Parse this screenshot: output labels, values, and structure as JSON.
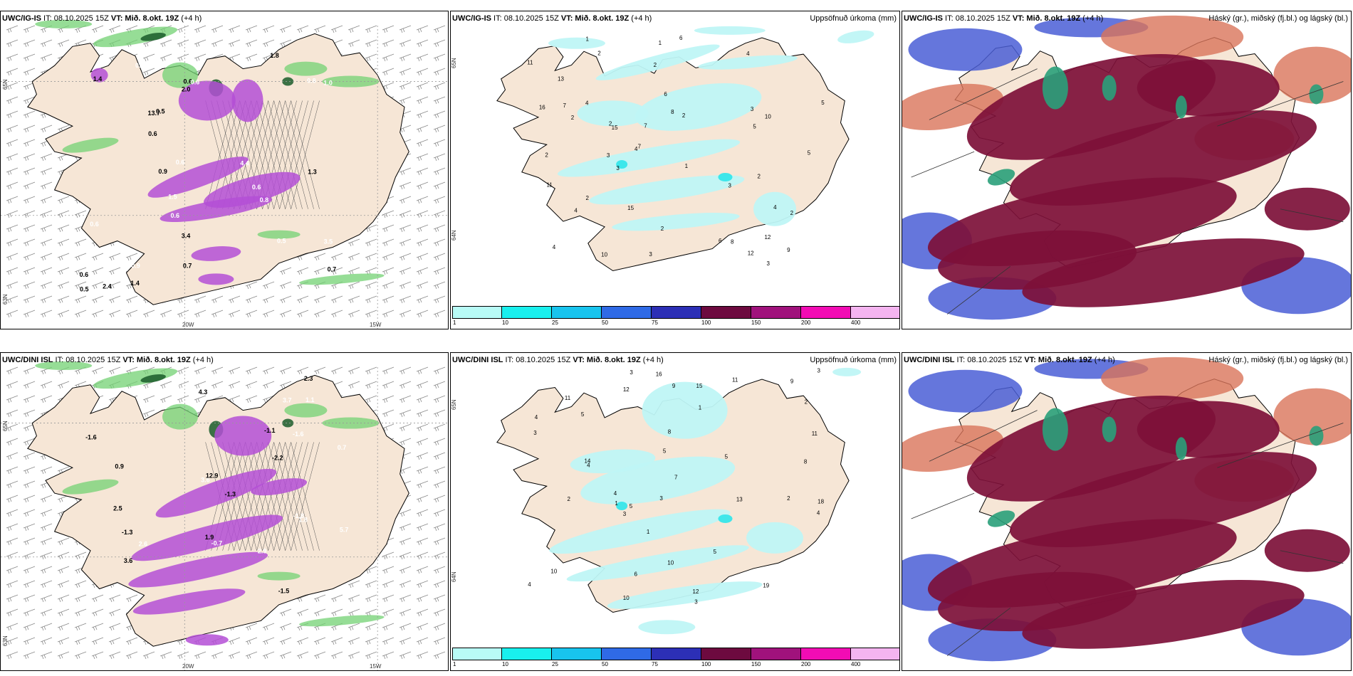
{
  "rows": [
    {
      "model": "UWC/IG-IS",
      "panels": [
        {
          "title_model": "UWC/IG-IS",
          "it_text": "IT: 08.10.2025 15Z",
          "vt_label": "VT: Mið. 8.okt. 19Z",
          "lead": "(+4 h)"
        },
        {
          "title_model": "UWC/IG-IS",
          "it_text": "IT: 08.10.2025 15Z",
          "vt_label": "VT: Mið. 8.okt. 19Z",
          "lead": "(+4 h)",
          "right_label": "Uppsöfnuð úrkoma (mm)"
        },
        {
          "title_model": "UWC/IG-IS",
          "it_text": "IT: 08.10.2025 15Z",
          "vt_label": "VT: Mið. 8.okt. 19Z",
          "lead": "(+4 h)",
          "right_label": "Háský (gr.), miðský (fj.bl.) og lágský (bl.)"
        }
      ]
    },
    {
      "model": "UWC/DINI ISL",
      "panels": [
        {
          "title_model": "UWC/DINI ISL",
          "it_text": "IT: 08.10.2025 15Z",
          "vt_label": "VT: Mið. 8.okt. 19Z",
          "lead": "(+4 h)"
        },
        {
          "title_model": "UWC/DINI ISL",
          "it_text": "IT: 08.10.2025 15Z",
          "vt_label": "VT: Mið. 8.okt. 19Z",
          "lead": "(+4 h)",
          "right_label": "Uppsöfnuð úrkoma (mm)"
        },
        {
          "title_model": "UWC/DINI ISL",
          "it_text": "IT: 08.10.2025 15Z",
          "vt_label": "VT: Mið. 8.okt. 19Z",
          "lead": "(+4 h)",
          "right_label": "Háský (gr.), miðský (fj.bl.) og lágský (bl.)"
        }
      ]
    }
  ],
  "axis_labels": {
    "lon_20": "20W",
    "lon_15": "15W",
    "lat_65": "65N",
    "lat_64": "64N",
    "lat_63": "63N"
  },
  "colorbar": {
    "labels": [
      "1",
      "10",
      "25",
      "50",
      "75",
      "100",
      "150",
      "200",
      "400"
    ],
    "colors": [
      "#b8fbf6",
      "#19f0ee",
      "#18c4ee",
      "#2f6ae6",
      "#2c2fb6",
      "#6d0a3f",
      "#a0127c",
      "#f20cb4",
      "#f4b4f0"
    ]
  },
  "precip_values_top": [
    "4",
    "6",
    "1",
    "2",
    "2",
    "1",
    "3",
    "7",
    "2",
    "2",
    "2",
    "9",
    "4",
    "3",
    "6",
    "7",
    "6",
    "8",
    "12",
    "7",
    "13",
    "3",
    "11",
    "12",
    "10",
    "1",
    "8",
    "5",
    "5",
    "2",
    "3",
    "3",
    "2",
    "16",
    "15",
    "10",
    "11",
    "15",
    "4",
    "4",
    "2",
    "5",
    "2",
    "2",
    "4",
    "4",
    "3"
  ],
  "precip_values_bottom": [
    "1",
    "1",
    "2",
    "8",
    "2",
    "4",
    "14",
    "10",
    "11",
    "8",
    "10",
    "11",
    "4",
    "5",
    "4",
    "5",
    "9",
    "7",
    "3",
    "3",
    "3",
    "6",
    "4",
    "4",
    "3",
    "1",
    "18",
    "13",
    "15",
    "16",
    "11",
    "10",
    "19",
    "12",
    "5",
    "5",
    "3",
    "9",
    "5",
    "2",
    "12",
    "3"
  ],
  "wind_values_top": [
    "0.7",
    "0.7",
    "0.6",
    "0.8",
    "0.6",
    "0.5",
    "0.5",
    "1.0",
    "0.6",
    "0.6",
    "1.4",
    "0.5",
    "0.6",
    "0.6",
    "3.4",
    "2.0",
    "1.8",
    "0.5",
    "3.5",
    "4.4",
    "13.7",
    "1.5",
    "0.9",
    "0.9",
    "0.6",
    "1.3",
    "0.6",
    "1.4",
    "0.8",
    "0.8",
    "2.4"
  ],
  "wind_values_bottom": [
    "-1.3",
    "-1.6",
    "-1.6",
    "-1.1",
    "-1.3",
    "-1.5",
    "-2.2",
    "-1.3",
    "2.9",
    "3.6",
    "4.2",
    "2.3",
    "3.6",
    "5.7",
    "4.3",
    "2.5",
    "12.9",
    "1.1",
    "1.7",
    "2.6",
    "0.9",
    "-1.8",
    "-0.7",
    "3.7",
    "0.7",
    "1.9",
    "1.8"
  ],
  "colors": {
    "land": "#f6e6d6",
    "cyan_light": "#bff6f6",
    "cyan_mid": "#36e6ea",
    "magenta": "#b44fd6",
    "green": "#73d273",
    "darkgreen": "#1a5c2a",
    "maroon": "#7d1038",
    "salmon": "#d9745a",
    "blue": "#4a5ed6",
    "lightblue": "#7ab7ec",
    "teal": "#2aa07a"
  }
}
